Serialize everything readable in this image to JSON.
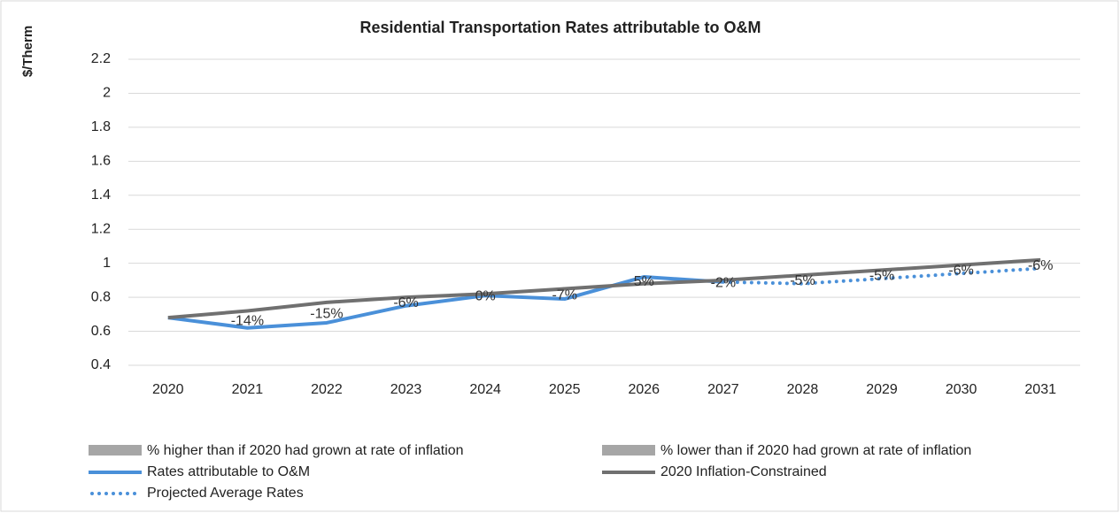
{
  "chart_data": {
    "type": "line",
    "title": "Residential Transportation Rates attributable to O&M",
    "y_label": "$/Therm",
    "categories": [
      "2020",
      "2021",
      "2022",
      "2023",
      "2024",
      "2025",
      "2026",
      "2027",
      "2028",
      "2029",
      "2030",
      "2031"
    ],
    "series": [
      {
        "name": "Rates attributable to O&M",
        "color": "#4a90d9",
        "style": "solid",
        "values": [
          0.68,
          0.62,
          0.65,
          0.75,
          0.81,
          0.79,
          0.92,
          0.89,
          null,
          null,
          null,
          null
        ]
      },
      {
        "name": "2020 Inflation-Constrained",
        "color": "#707070",
        "style": "solid",
        "values": [
          0.68,
          0.72,
          0.77,
          0.8,
          0.82,
          0.85,
          0.88,
          0.9,
          0.93,
          0.96,
          0.99,
          1.02
        ]
      },
      {
        "name": "Projected Average Rates",
        "color": "#4a90d9",
        "style": "dotted",
        "values": [
          null,
          null,
          null,
          null,
          null,
          null,
          null,
          0.89,
          0.88,
          0.91,
          0.94,
          0.97
        ]
      }
    ],
    "legend_bars": [
      {
        "name": "% higher than if 2020 had grown at rate of inflation",
        "color": "#a6a6a6"
      },
      {
        "name": "% lower than if 2020 had grown at rate of inflation",
        "color": "#a6a6a6"
      }
    ],
    "data_labels": {
      "values": [
        null,
        -14,
        -15,
        -6,
        0,
        -7,
        5,
        -2,
        -5,
        -5,
        -6,
        -6
      ],
      "value_labels": [
        null,
        "-14%",
        "-15%",
        "-6%",
        "0%",
        "-7%",
        "5%",
        "-2%",
        "-5%",
        "-5%",
        "-6%",
        "-6%"
      ]
    },
    "ylim": [
      0.4,
      2.2
    ],
    "yticks": [
      0.4,
      0.6,
      0.8,
      1,
      1.2,
      1.4,
      1.6,
      1.8,
      2,
      2.2
    ],
    "grid": true
  }
}
